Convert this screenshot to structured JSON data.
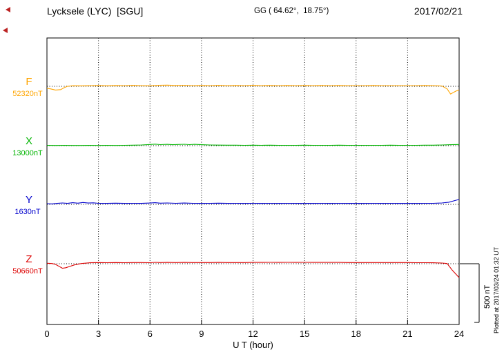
{
  "header": {
    "title": "Lycksele (LYC)  [SGU]",
    "coords": "GG ( 64.62°,  18.75°)",
    "date": "2017/02/21"
  },
  "footer": {
    "xlabel": "U T (hour)"
  },
  "side": {
    "scale_label": "500 nT",
    "plotted_at": "Plotted at 2017/03/24 01:32 UT"
  },
  "chart_data": {
    "type": "line",
    "title": "Lycksele (LYC) [SGU]",
    "date": "2017/02/21",
    "station_coords_gg": "64.62°, 18.75°",
    "xlabel": "U T (hour)",
    "xlim": [
      0,
      24
    ],
    "x_ticks": [
      0,
      3,
      6,
      9,
      12,
      15,
      18,
      21,
      24
    ],
    "grid": "vertical dotted lines at 3-hour intervals; dotted horizontal baseline per component",
    "scale_bar_nT": 500,
    "scale_bar_label": "500 nT",
    "plotted_at": "Plotted at 2017/03/24 01:32 UT",
    "series": [
      {
        "name": "F",
        "baseline_label": "52320nT",
        "baseline_nT": 52320,
        "color": "#ffa500",
        "points": [
          [
            0,
            -18
          ],
          [
            0.2,
            -22
          ],
          [
            0.5,
            -32
          ],
          [
            0.8,
            -28
          ],
          [
            1,
            -12
          ],
          [
            1.2,
            0
          ],
          [
            1.5,
            5
          ],
          [
            2,
            4
          ],
          [
            2.5,
            6
          ],
          [
            3,
            7
          ],
          [
            3.5,
            5
          ],
          [
            4,
            7
          ],
          [
            4.5,
            6
          ],
          [
            5,
            8
          ],
          [
            5.5,
            6
          ],
          [
            6,
            5
          ],
          [
            6.5,
            8
          ],
          [
            7,
            10
          ],
          [
            7.5,
            7
          ],
          [
            8,
            9
          ],
          [
            8.5,
            6
          ],
          [
            9,
            7
          ],
          [
            9.5,
            6
          ],
          [
            10,
            8
          ],
          [
            10.5,
            6
          ],
          [
            11,
            7
          ],
          [
            11.5,
            6
          ],
          [
            12,
            8
          ],
          [
            12.5,
            6
          ],
          [
            13,
            7
          ],
          [
            13.5,
            6
          ],
          [
            14,
            7
          ],
          [
            14.5,
            6
          ],
          [
            15,
            7
          ],
          [
            15.5,
            6
          ],
          [
            16,
            7
          ],
          [
            16.5,
            6
          ],
          [
            17,
            7
          ],
          [
            17.5,
            6
          ],
          [
            18,
            6
          ],
          [
            18.5,
            6
          ],
          [
            19,
            7
          ],
          [
            19.5,
            6
          ],
          [
            20,
            6
          ],
          [
            20.5,
            6
          ],
          [
            21,
            6
          ],
          [
            21.5,
            6
          ],
          [
            22,
            7
          ],
          [
            22.5,
            6
          ],
          [
            23,
            3
          ],
          [
            23.3,
            -22
          ],
          [
            23.5,
            -66
          ],
          [
            23.8,
            -42
          ],
          [
            24,
            -30
          ]
        ]
      },
      {
        "name": "X",
        "baseline_label": "13000nT",
        "baseline_nT": 13000,
        "color": "#00b400",
        "points": [
          [
            0,
            3
          ],
          [
            0.5,
            2
          ],
          [
            1,
            3
          ],
          [
            1.5,
            2
          ],
          [
            2,
            2
          ],
          [
            2.5,
            3
          ],
          [
            3,
            2
          ],
          [
            3.5,
            3
          ],
          [
            4,
            2
          ],
          [
            4.5,
            3
          ],
          [
            5,
            4
          ],
          [
            5.5,
            6
          ],
          [
            6,
            10
          ],
          [
            6.3,
            13
          ],
          [
            6.6,
            9
          ],
          [
            7,
            11
          ],
          [
            7.3,
            8
          ],
          [
            7.6,
            10
          ],
          [
            8,
            12
          ],
          [
            8.3,
            9
          ],
          [
            8.6,
            11
          ],
          [
            9,
            8
          ],
          [
            9.5,
            6
          ],
          [
            10,
            5
          ],
          [
            10.5,
            4
          ],
          [
            11,
            4
          ],
          [
            11.5,
            3
          ],
          [
            12,
            4
          ],
          [
            12.5,
            3
          ],
          [
            13,
            4
          ],
          [
            13.5,
            3
          ],
          [
            14,
            3
          ],
          [
            14.5,
            3
          ],
          [
            15,
            4
          ],
          [
            15.5,
            3
          ],
          [
            16,
            3
          ],
          [
            16.5,
            3
          ],
          [
            17,
            4
          ],
          [
            17.5,
            3
          ],
          [
            18,
            3
          ],
          [
            18.5,
            3
          ],
          [
            19,
            3
          ],
          [
            19.5,
            3
          ],
          [
            20,
            4
          ],
          [
            20.5,
            3
          ],
          [
            21,
            3
          ],
          [
            21.5,
            3
          ],
          [
            22,
            4
          ],
          [
            22.5,
            4
          ],
          [
            23,
            6
          ],
          [
            23.5,
            8
          ],
          [
            24,
            10
          ]
        ]
      },
      {
        "name": "Y",
        "baseline_label": "1630nT",
        "baseline_nT": 1630,
        "color": "#0000cc",
        "points": [
          [
            0,
            6
          ],
          [
            0.3,
            4
          ],
          [
            0.6,
            8
          ],
          [
            0.9,
            12
          ],
          [
            1.2,
            8
          ],
          [
            1.5,
            14
          ],
          [
            1.8,
            10
          ],
          [
            2.1,
            16
          ],
          [
            2.4,
            11
          ],
          [
            2.7,
            13
          ],
          [
            3,
            9
          ],
          [
            3.5,
            8
          ],
          [
            4,
            10
          ],
          [
            4.5,
            8
          ],
          [
            5,
            9
          ],
          [
            5.5,
            8
          ],
          [
            6,
            11
          ],
          [
            6.3,
            14
          ],
          [
            6.6,
            10
          ],
          [
            7,
            12
          ],
          [
            7.5,
            9
          ],
          [
            8,
            11
          ],
          [
            8.5,
            9
          ],
          [
            9,
            8
          ],
          [
            9.5,
            9
          ],
          [
            10,
            10
          ],
          [
            10.5,
            8
          ],
          [
            11,
            9
          ],
          [
            11.5,
            8
          ],
          [
            12,
            9
          ],
          [
            12.5,
            8
          ],
          [
            13,
            9
          ],
          [
            13.5,
            8
          ],
          [
            14,
            9
          ],
          [
            14.5,
            8
          ],
          [
            15,
            8
          ],
          [
            15.5,
            8
          ],
          [
            16,
            9
          ],
          [
            16.5,
            8
          ],
          [
            17,
            9
          ],
          [
            17.5,
            8
          ],
          [
            18,
            8
          ],
          [
            18.5,
            8
          ],
          [
            19,
            9
          ],
          [
            19.5,
            8
          ],
          [
            20,
            9
          ],
          [
            20.5,
            8
          ],
          [
            21,
            8
          ],
          [
            21.5,
            8
          ],
          [
            22,
            9
          ],
          [
            22.5,
            9
          ],
          [
            23,
            12
          ],
          [
            23.4,
            18
          ],
          [
            23.7,
            30
          ],
          [
            24,
            42
          ]
        ]
      },
      {
        "name": "Z",
        "baseline_label": "50660nT",
        "baseline_nT": 50660,
        "color": "#dd0000",
        "points": [
          [
            0,
            4
          ],
          [
            0.3,
            2
          ],
          [
            0.5,
            -6
          ],
          [
            0.7,
            -22
          ],
          [
            0.9,
            -38
          ],
          [
            1.1,
            -34
          ],
          [
            1.3,
            -24
          ],
          [
            1.6,
            -10
          ],
          [
            2,
            2
          ],
          [
            2.5,
            8
          ],
          [
            3,
            10
          ],
          [
            3.5,
            9
          ],
          [
            4,
            10
          ],
          [
            4.5,
            9
          ],
          [
            5,
            10
          ],
          [
            5.5,
            10
          ],
          [
            6,
            9
          ],
          [
            6.3,
            12
          ],
          [
            6.6,
            10
          ],
          [
            7,
            11
          ],
          [
            7.5,
            10
          ],
          [
            8,
            11
          ],
          [
            8.5,
            10
          ],
          [
            9,
            10
          ],
          [
            9.5,
            10
          ],
          [
            10,
            11
          ],
          [
            10.5,
            10
          ],
          [
            11,
            10
          ],
          [
            11.5,
            10
          ],
          [
            12,
            11
          ],
          [
            12.5,
            11
          ],
          [
            13,
            12
          ],
          [
            13.5,
            11
          ],
          [
            14,
            12
          ],
          [
            14.5,
            11
          ],
          [
            15,
            12
          ],
          [
            15.5,
            11
          ],
          [
            16,
            11
          ],
          [
            16.5,
            11
          ],
          [
            17,
            11
          ],
          [
            17.5,
            10
          ],
          [
            18,
            10
          ],
          [
            18.5,
            10
          ],
          [
            19,
            10
          ],
          [
            19.5,
            10
          ],
          [
            20,
            10
          ],
          [
            20.5,
            10
          ],
          [
            21,
            10
          ],
          [
            21.5,
            9
          ],
          [
            22,
            9
          ],
          [
            22.5,
            8
          ],
          [
            23,
            6
          ],
          [
            23.3,
            2
          ],
          [
            23.6,
            -55
          ],
          [
            24,
            -118
          ]
        ]
      }
    ]
  }
}
